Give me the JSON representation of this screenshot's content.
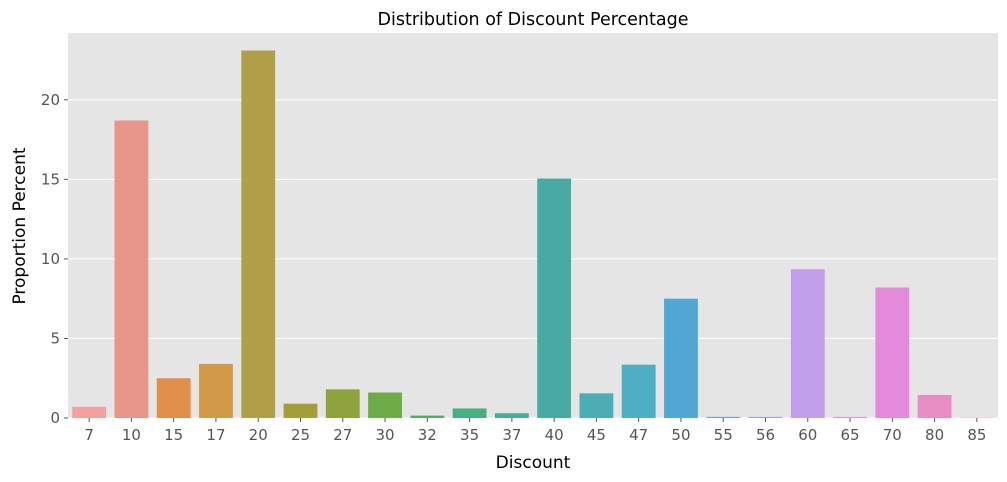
{
  "chart_data": {
    "type": "bar",
    "title": "Distribution of Discount Percentage",
    "xlabel": "Discount",
    "ylabel": "Proportion Percent",
    "categories": [
      "7",
      "10",
      "15",
      "17",
      "20",
      "25",
      "27",
      "30",
      "32",
      "35",
      "37",
      "40",
      "45",
      "47",
      "50",
      "55",
      "56",
      "60",
      "65",
      "70",
      "80",
      "85"
    ],
    "values": [
      0.7,
      18.7,
      2.5,
      3.4,
      23.1,
      0.9,
      1.8,
      1.6,
      0.15,
      0.6,
      0.3,
      15.05,
      1.55,
      3.35,
      7.5,
      0.07,
      0.07,
      9.35,
      0.07,
      8.2,
      1.45,
      0.02
    ],
    "colors": [
      "#f2a0a0",
      "#e9968a",
      "#e08e4a",
      "#d29a48",
      "#b09e49",
      "#a39e3a",
      "#8ea23d",
      "#6dab47",
      "#4eb162",
      "#49af80",
      "#4aad95",
      "#49aaa3",
      "#4cadb4",
      "#4eaec4",
      "#51a7d4",
      "#6b9ee8",
      "#9d9ff0",
      "#c19fea",
      "#da93e6",
      "#e58ada",
      "#e88cc4",
      "#f09ec0"
    ],
    "ylim": [
      0,
      24.2
    ],
    "yticks": [
      0,
      5,
      10,
      15,
      20
    ],
    "grid": true,
    "style": "ggplot"
  }
}
